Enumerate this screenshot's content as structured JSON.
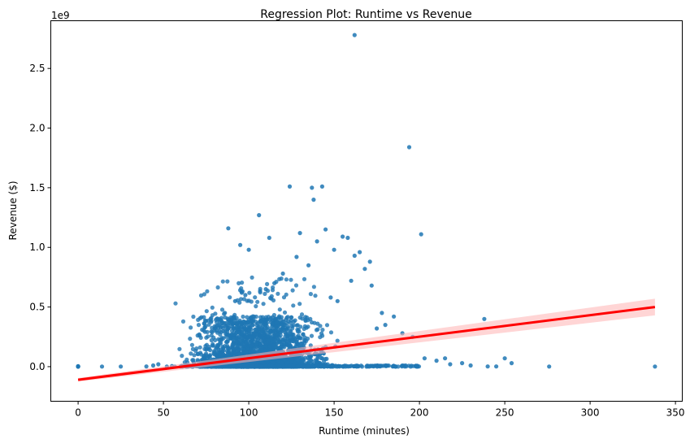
{
  "chart_data": {
    "type": "scatter",
    "title": "Regression Plot: Runtime vs Revenue",
    "xlabel": "Runtime (minutes)",
    "ylabel": "Revenue ($)",
    "y_offset_text": "1e9",
    "xlim": [
      -16,
      354
    ],
    "ylim": [
      -0.29,
      2.9
    ],
    "x_ticks": [
      0,
      50,
      100,
      150,
      200,
      250,
      300,
      350
    ],
    "y_ticks": [
      0.0,
      0.5,
      1.0,
      1.5,
      2.0,
      2.5
    ],
    "x_tick_labels": [
      "0",
      "50",
      "100",
      "150",
      "200",
      "250",
      "300",
      "350"
    ],
    "y_tick_labels": [
      "0.0",
      "0.5",
      "1.0",
      "1.5",
      "2.0",
      "2.5"
    ],
    "grid": false,
    "point_color": "#1f77b4",
    "line_color": "#ff0000",
    "band_color": "#ffb3b3",
    "regression_line": {
      "x": [
        0,
        338
      ],
      "y": [
        -0.11,
        0.5
      ]
    },
    "confidence_band": {
      "x": [
        0,
        338
      ],
      "lower": [
        -0.125,
        0.43
      ],
      "upper": [
        -0.095,
        0.57
      ]
    },
    "highlighted_points": {
      "x": [
        0,
        0,
        0,
        0,
        14,
        25,
        40,
        44,
        47,
        52,
        55,
        60,
        63,
        66,
        69,
        71,
        72,
        75,
        77,
        162,
        194,
        201,
        124,
        137,
        143,
        138,
        106,
        88,
        95,
        100,
        112,
        130,
        140,
        145,
        150,
        155,
        158,
        162,
        165,
        171,
        178,
        185,
        190,
        196,
        203,
        210,
        215,
        218,
        225,
        230,
        238,
        240,
        245,
        250,
        254,
        276,
        338,
        180,
        175,
        172,
        168,
        160,
        152,
        148,
        135,
        128,
        120,
        115,
        110,
        98,
        92,
        86,
        83,
        80
      ],
      "y": [
        0,
        0.002,
        0.004,
        0.001,
        0.001,
        0.001,
        0.002,
        0.01,
        0.02,
        0.001,
        0.005,
        0.001,
        0.003,
        0.004,
        0.005,
        0.27,
        0.008,
        0.03,
        0.05,
        2.78,
        1.84,
        1.11,
        1.51,
        1.5,
        1.51,
        1.4,
        1.27,
        1.16,
        1.02,
        0.98,
        1.08,
        1.12,
        1.05,
        1.15,
        0.98,
        1.09,
        1.08,
        0.93,
        0.96,
        0.88,
        0.45,
        0.42,
        0.28,
        0.25,
        0.07,
        0.05,
        0.07,
        0.02,
        0.03,
        0.01,
        0.4,
        0.002,
        0.002,
        0.07,
        0.03,
        0.001,
        0.001,
        0.35,
        0.32,
        0.68,
        0.82,
        0.72,
        0.55,
        0.58,
        0.85,
        0.92,
        0.78,
        0.7,
        0.65,
        0.6,
        0.55,
        0.45,
        0.38,
        0.32
      ]
    }
  }
}
